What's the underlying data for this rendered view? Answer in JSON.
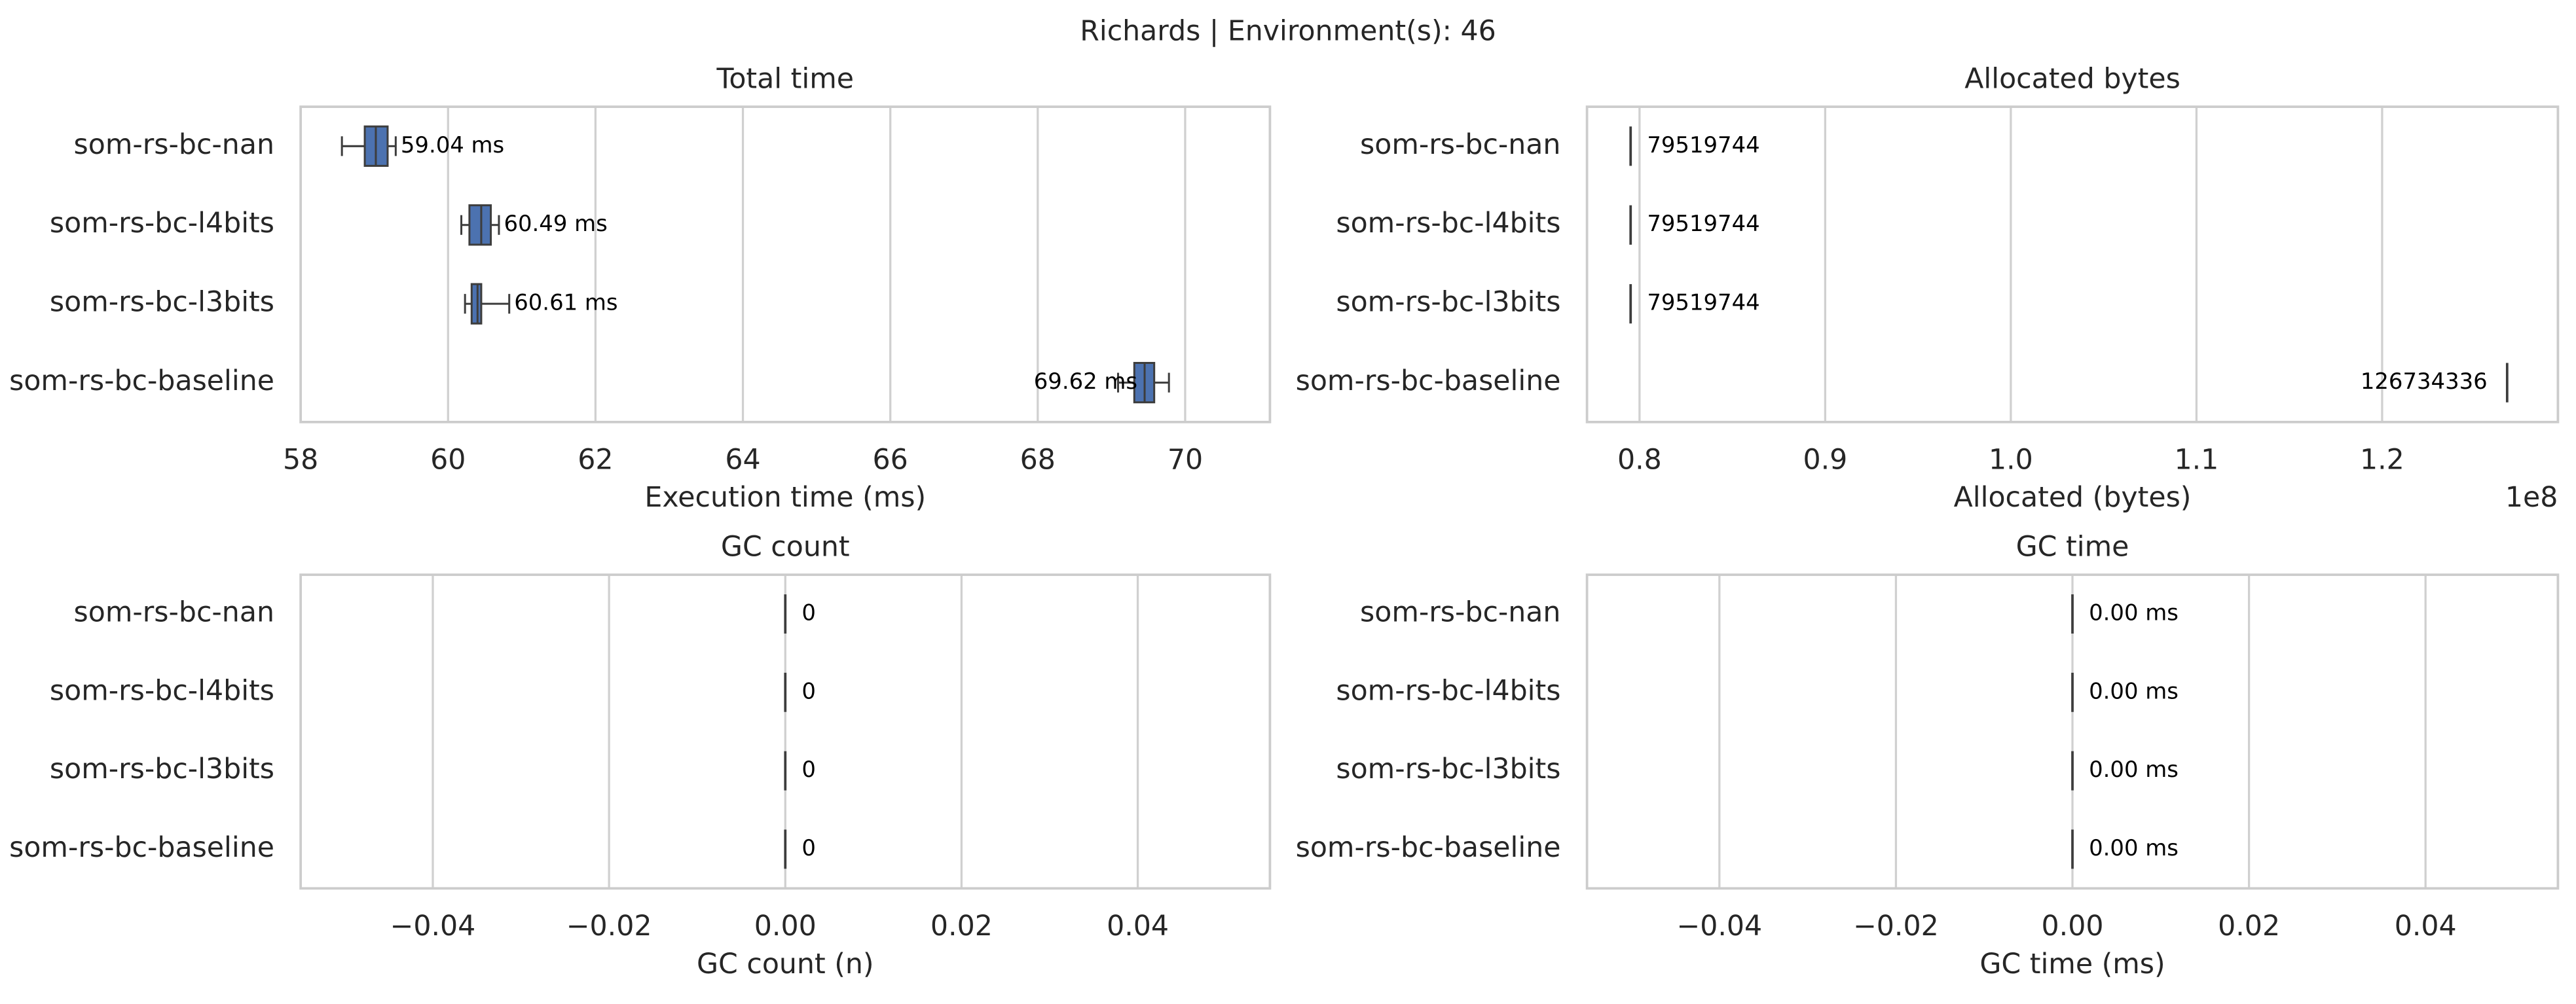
{
  "title": "Richards | Environment(s): 46",
  "chart_data": [
    {
      "type": "box",
      "title": "Total time",
      "xlabel": "Execution time (ms)",
      "categories": [
        "som-rs-bc-nan",
        "som-rs-bc-l4bits",
        "som-rs-bc-l3bits",
        "som-rs-bc-baseline"
      ],
      "values": [
        59.04,
        60.49,
        60.61,
        69.62
      ],
      "value_labels": [
        "59.04 ms",
        "60.49 ms",
        "60.61 ms",
        "69.62 ms"
      ],
      "whisker_low": [
        58.56,
        60.18,
        60.23,
        69.09
      ],
      "q1": [
        58.87,
        60.29,
        60.32,
        69.31
      ],
      "median": [
        59.02,
        60.45,
        60.4,
        69.45
      ],
      "q3": [
        59.18,
        60.58,
        60.45,
        69.58
      ],
      "whisker_high": [
        59.29,
        60.69,
        60.83,
        69.78
      ],
      "color": "#4c72b0",
      "xlim": [
        58,
        71.15
      ],
      "xticks": [
        58,
        60,
        62,
        64,
        66,
        68,
        70
      ],
      "grid": true
    },
    {
      "type": "box",
      "title": "Allocated bytes",
      "xlabel": "Allocated (bytes)",
      "offset_label": "1e8",
      "categories": [
        "som-rs-bc-nan",
        "som-rs-bc-l4bits",
        "som-rs-bc-l3bits",
        "som-rs-bc-baseline"
      ],
      "values": [
        79519744,
        79519744,
        79519744,
        126734336
      ],
      "xlim": [
        77170000,
        129470000
      ],
      "xticks": [
        {
          "value": 80000000,
          "label": "0.8"
        },
        {
          "value": 90000000,
          "label": "0.9"
        },
        {
          "value": 100000000,
          "label": "1.0"
        },
        {
          "value": 110000000,
          "label": "1.1"
        },
        {
          "value": 120000000,
          "label": "1.2"
        }
      ],
      "grid": true
    },
    {
      "type": "box",
      "title": "GC count",
      "xlabel": "GC count (n)",
      "categories": [
        "som-rs-bc-nan",
        "som-rs-bc-l4bits",
        "som-rs-bc-l3bits",
        "som-rs-bc-baseline"
      ],
      "values": [
        0,
        0,
        0,
        0
      ],
      "xlim": [
        -0.055,
        0.055
      ],
      "xticks": [
        {
          "value": -0.04,
          "label": "−0.04"
        },
        {
          "value": -0.02,
          "label": "−0.02"
        },
        {
          "value": 0,
          "label": "0.00"
        },
        0.02,
        0.04
      ],
      "grid": true
    },
    {
      "type": "box",
      "title": "GC time",
      "xlabel": "GC time (ms)",
      "categories": [
        "som-rs-bc-nan",
        "som-rs-bc-l4bits",
        "som-rs-bc-l3bits",
        "som-rs-bc-baseline"
      ],
      "values": [
        0,
        0,
        0,
        0
      ],
      "value_labels": [
        "0.00 ms",
        "0.00 ms",
        "0.00 ms",
        "0.00 ms"
      ],
      "xlim": [
        -0.055,
        0.055
      ],
      "xticks": [
        {
          "value": -0.04,
          "label": "−0.04"
        },
        {
          "value": -0.02,
          "label": "−0.02"
        },
        {
          "value": 0,
          "label": "0.00"
        },
        0.02,
        0.04
      ],
      "grid": true
    }
  ]
}
